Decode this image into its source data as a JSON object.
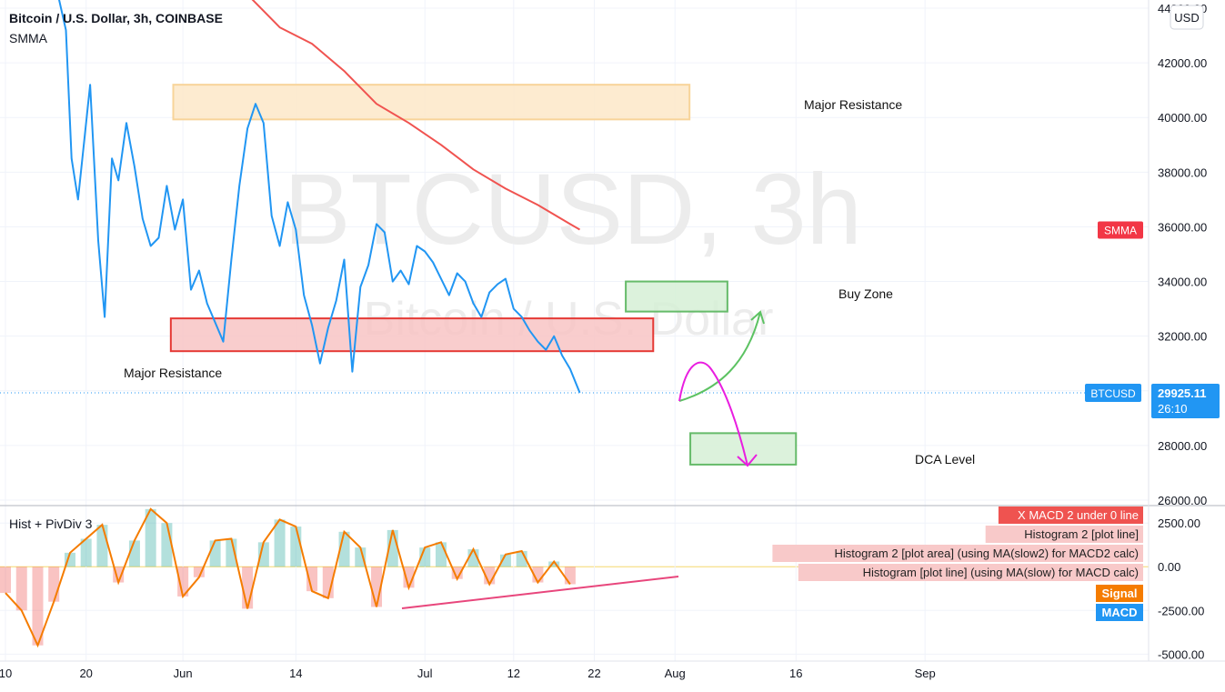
{
  "header": {
    "title": "Bitcoin / U.S. Dollar, 3h, COINBASE",
    "indicator": "SMMA",
    "currency_badge": "USD"
  },
  "watermark": {
    "big": "BTCUSD, 3h",
    "small": "Bitcoin / U.S. Dollar"
  },
  "price_axis": {
    "ticks": [
      "44000.00",
      "42000.00",
      "40000.00",
      "38000.00",
      "36000.00",
      "34000.00",
      "32000.00",
      "30000.00",
      "28000.00",
      "26000.00"
    ],
    "tick_values": [
      44000,
      42000,
      40000,
      38000,
      36000,
      34000,
      32000,
      30000,
      28000,
      26000
    ]
  },
  "price_badges": {
    "smma": {
      "label": "SMMA",
      "value": 35900,
      "color": "#f23645"
    },
    "btc": {
      "label": "BTCUSD",
      "price": "29925.11",
      "countdown": "26:10",
      "value": 29925.11,
      "color": "#2196f3"
    }
  },
  "annotations": {
    "top_zone_label": "Major Resistance",
    "bottom_zone_label": "Major Resistance",
    "buy_zone_label": "Buy Zone",
    "dca_label": "DCA Level"
  },
  "zones": [
    {
      "name": "top-resistance",
      "from_day": 20.8,
      "to_day": 84.8,
      "low": 39930,
      "high": 41200,
      "fill": "#fde8c8",
      "stroke": "#f8d49a"
    },
    {
      "name": "bottom-resistance",
      "from_day": 20.5,
      "to_day": 80.3,
      "low": 31450,
      "high": 32650,
      "fill": "#f8c4c4",
      "stroke": "#e53935"
    },
    {
      "name": "buy-zone",
      "from_day": 76.9,
      "to_day": 89.5,
      "low": 32900,
      "high": 34000,
      "fill": "#d6f0d6",
      "stroke": "#66bb6a"
    },
    {
      "name": "dca-zone",
      "from_day": 84.9,
      "to_day": 98.0,
      "low": 27300,
      "high": 28450,
      "fill": "#d6f0d6",
      "stroke": "#66bb6a"
    }
  ],
  "time_axis": {
    "labels": [
      "10",
      "20",
      "Jun",
      "14",
      "Jul",
      "12",
      "22",
      "Aug",
      "16",
      "Sep"
    ],
    "days": [
      0,
      10,
      22,
      36,
      52,
      63,
      73,
      83,
      98,
      114
    ]
  },
  "indicator_panel": {
    "title": "Hist + PivDiv 3",
    "ticks": [
      "2500.00",
      "0.00",
      "-2500.00",
      "-5000.00"
    ],
    "tick_values": [
      2500,
      0,
      -2500,
      -5000
    ],
    "legend": [
      {
        "text": "X MACD 2 under 0 line",
        "bg": "#ef5350",
        "fg": "#ffffff"
      },
      {
        "text": "Histogram 2 [plot line]",
        "bg": "#f8c9c9",
        "fg": "#222222"
      },
      {
        "text": "Histogram 2 [plot area] (using MA(slow2) for MACD2 calc)",
        "bg": "#f8c9c9",
        "fg": "#222222"
      },
      {
        "text": "Histogram [plot line] (using MA(slow) for MACD calc)",
        "bg": "#f8c9c9",
        "fg": "#222222"
      }
    ],
    "badges": [
      {
        "text": "Signal",
        "bg": "#f57c00"
      },
      {
        "text": "MACD",
        "bg": "#2196f3"
      }
    ]
  },
  "chart_data": [
    {
      "type": "line",
      "title": "Bitcoin / U.S. Dollar, 3h, COINBASE",
      "x_unit": "days since May 10",
      "ylim": [
        25800,
        44300
      ],
      "series": [
        {
          "name": "BTCUSD",
          "color": "#2196f3",
          "x": [
            6.5,
            7.5,
            8.2,
            9,
            10.5,
            11.5,
            12.3,
            13.2,
            14,
            15,
            16,
            17,
            18,
            19,
            20,
            21,
            22,
            23,
            24,
            25,
            26,
            27,
            28,
            29,
            30,
            31,
            32,
            33,
            34,
            35,
            36,
            37,
            38,
            39,
            40,
            41,
            42,
            43,
            44,
            45,
            46,
            47,
            48,
            49,
            50,
            51,
            52,
            53,
            54,
            55,
            56,
            57,
            58,
            59,
            60,
            61,
            62,
            63,
            64,
            65,
            66,
            67,
            68,
            69,
            70,
            71.2
          ],
          "values": [
            44500,
            43200,
            38500,
            37000,
            41200,
            35500,
            32700,
            38500,
            37700,
            39800,
            38200,
            36300,
            35300,
            35600,
            37500,
            35900,
            37000,
            33700,
            34400,
            33200,
            32500,
            31800,
            34800,
            37500,
            39600,
            40500,
            39800,
            36400,
            35300,
            36900,
            35900,
            33500,
            32400,
            31000,
            32300,
            33300,
            34800,
            30700,
            33800,
            34600,
            36100,
            35800,
            34000,
            34400,
            33900,
            35300,
            35100,
            34700,
            34100,
            33500,
            34300,
            34000,
            33200,
            32700,
            33600,
            33900,
            34100,
            33000,
            32700,
            32200,
            31800,
            31500,
            32000,
            31300,
            30800,
            29930
          ]
        },
        {
          "name": "SMMA",
          "color": "#f05350",
          "x": [
            30,
            34,
            38,
            42,
            46,
            50,
            54,
            58,
            62,
            66,
            70,
            71.2
          ],
          "values": [
            44500,
            43300,
            42700,
            41700,
            40500,
            39800,
            39000,
            38100,
            37400,
            36800,
            36100,
            35900
          ]
        }
      ]
    },
    {
      "type": "bar",
      "title": "Hist + PivDiv 3",
      "x_unit": "days since May 10",
      "ylim": [
        -5400,
        3500
      ],
      "series": [
        {
          "name": "Histogram",
          "x": [
            0,
            2,
            4,
            6,
            8,
            10,
            12,
            14,
            16,
            18,
            20,
            22,
            24,
            26,
            28,
            30,
            32,
            34,
            36,
            38,
            40,
            42,
            44,
            46,
            48,
            50,
            52,
            54,
            56,
            58,
            60,
            62,
            64,
            66,
            68,
            70
          ],
          "values": [
            -1500,
            -2500,
            -4500,
            -2000,
            800,
            1600,
            2400,
            -900,
            1500,
            3300,
            2500,
            -1700,
            -600,
            1500,
            1600,
            -2400,
            1400,
            2700,
            2300,
            -1400,
            -1800,
            2000,
            1100,
            -2300,
            2100,
            -1200,
            1100,
            1400,
            -700,
            1000,
            -1000,
            700,
            900,
            -900,
            300,
            -1000
          ]
        }
      ]
    }
  ]
}
